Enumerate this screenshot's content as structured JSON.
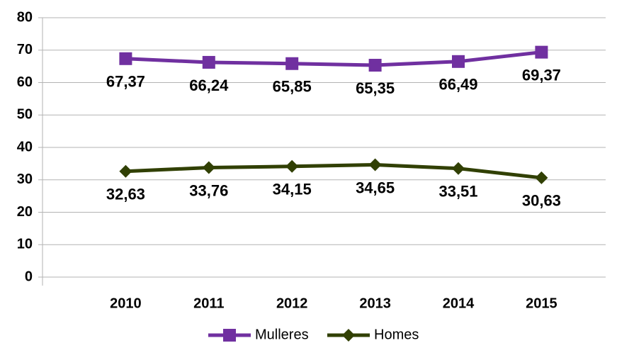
{
  "chart_data": {
    "type": "line",
    "categories": [
      "2010",
      "2011",
      "2012",
      "2013",
      "2014",
      "2015"
    ],
    "series": [
      {
        "name": "Mulleres",
        "color": "#7030a0",
        "marker": "square",
        "values": [
          67.37,
          66.24,
          65.85,
          65.35,
          66.49,
          69.37
        ],
        "value_labels": [
          "67,37",
          "66,24",
          "65,85",
          "65,35",
          "66,49",
          "69,37"
        ]
      },
      {
        "name": "Homes",
        "color": "#314004",
        "marker": "diamond",
        "values": [
          32.63,
          33.76,
          34.15,
          34.65,
          33.51,
          30.63
        ],
        "value_labels": [
          "32,63",
          "33,76",
          "34,15",
          "34,65",
          "33,51",
          "30,63"
        ]
      }
    ],
    "ylim": [
      0,
      80
    ],
    "yticks": [
      0,
      10,
      20,
      30,
      40,
      50,
      60,
      70,
      80
    ],
    "grid": true,
    "legend": "bottom"
  }
}
